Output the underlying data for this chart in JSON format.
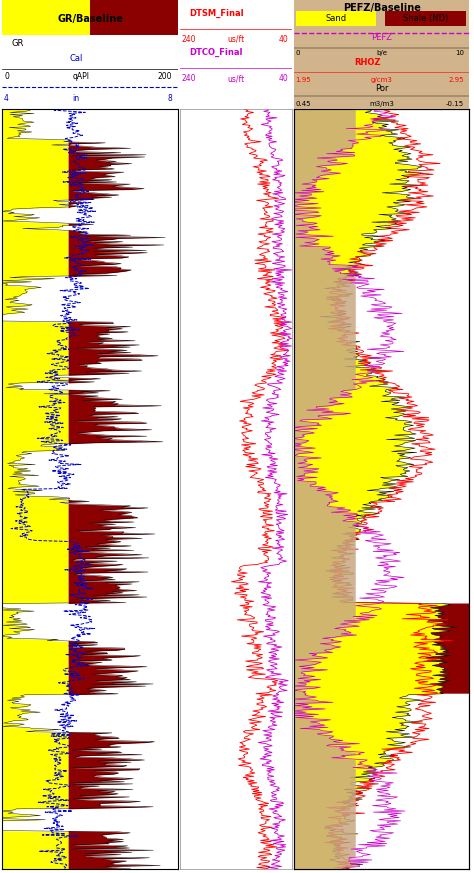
{
  "track1": {
    "header_label": "GR/Baseline",
    "header_yellow": "#FFFF00",
    "header_red": "#8B0000",
    "label_GR": "GR",
    "label_GR_unit": "qAPI",
    "GR_min": 0,
    "GR_max": 200,
    "GR_baseline": 75,
    "label_Cal": "Cal",
    "Cal_unit": "in",
    "Cal_min": 4,
    "Cal_max": 8,
    "fill_yellow": "#FFFF00",
    "fill_red": "#8B0000",
    "line_color": "#000000",
    "cal_line_color": "#0000CD"
  },
  "track2": {
    "label_DTSM": "DTSM_Final",
    "label_DTCO": "DTCO_Final",
    "unit": "us/ft",
    "min": 240,
    "max": 40,
    "DTSM_color": "#FF0000",
    "DTCO_color": "#CC00CC"
  },
  "track3": {
    "header_color": "#D2B48C",
    "header_label": "PEFZ/Baseline",
    "sand_label": "Sand",
    "shale_label": "Shale (ND)",
    "sand_color": "#FFFF00",
    "shale_color": "#8B0000",
    "PEFZ_label": "PEFZ",
    "PEFZ_color": "#CC00CC",
    "PEFZ_min": 0,
    "PEFZ_max": 10,
    "PEFZ_unit": "b/e",
    "RHOZ_label": "RHOZ",
    "RHOZ_color": "#FF0000",
    "RHOZ_min": 1.95,
    "RHOZ_max": 2.95,
    "RHOZ_unit": "g/cm3",
    "Por_label": "Por",
    "Por_unit": "m3/m3",
    "Por_min": 0.45,
    "Por_max": -0.15,
    "tan_color": "#C8A882",
    "por_yellow": "#FFFF00",
    "por_red": "#8B0000"
  },
  "n_depth": 700,
  "background": "#FFFFFF",
  "grid_color": "#CCCCCC"
}
